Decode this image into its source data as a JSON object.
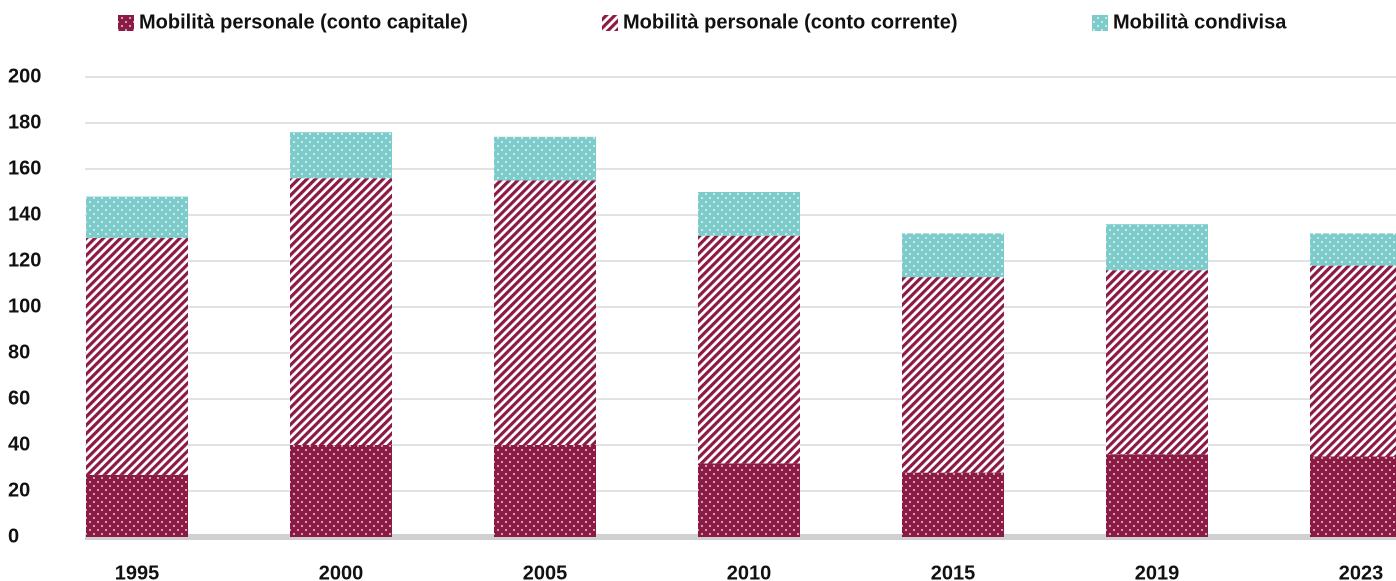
{
  "chart_data": {
    "type": "stacked_bar",
    "categories": [
      "1995",
      "2000",
      "2005",
      "2010",
      "2015",
      "2019",
      "2023"
    ],
    "series": [
      {
        "name": "Mobilità personale (conto capitale)",
        "color": "#8b1a45",
        "values": [
          27,
          40,
          40,
          32,
          28,
          36,
          35
        ]
      },
      {
        "name": "Mobilità personale (conto corrente)",
        "color": "#8b1a45",
        "values": [
          103,
          116,
          115,
          99,
          85,
          80,
          83
        ]
      },
      {
        "name": "Mobilità condivisa",
        "color": "#7ecbcb",
        "values": [
          18,
          20,
          19,
          19,
          19,
          20,
          14
        ]
      }
    ],
    "ylim": [
      0,
      200
    ],
    "yticks": [
      0,
      20,
      40,
      60,
      80,
      100,
      120,
      140,
      160,
      180,
      200
    ],
    "grid": true
  }
}
